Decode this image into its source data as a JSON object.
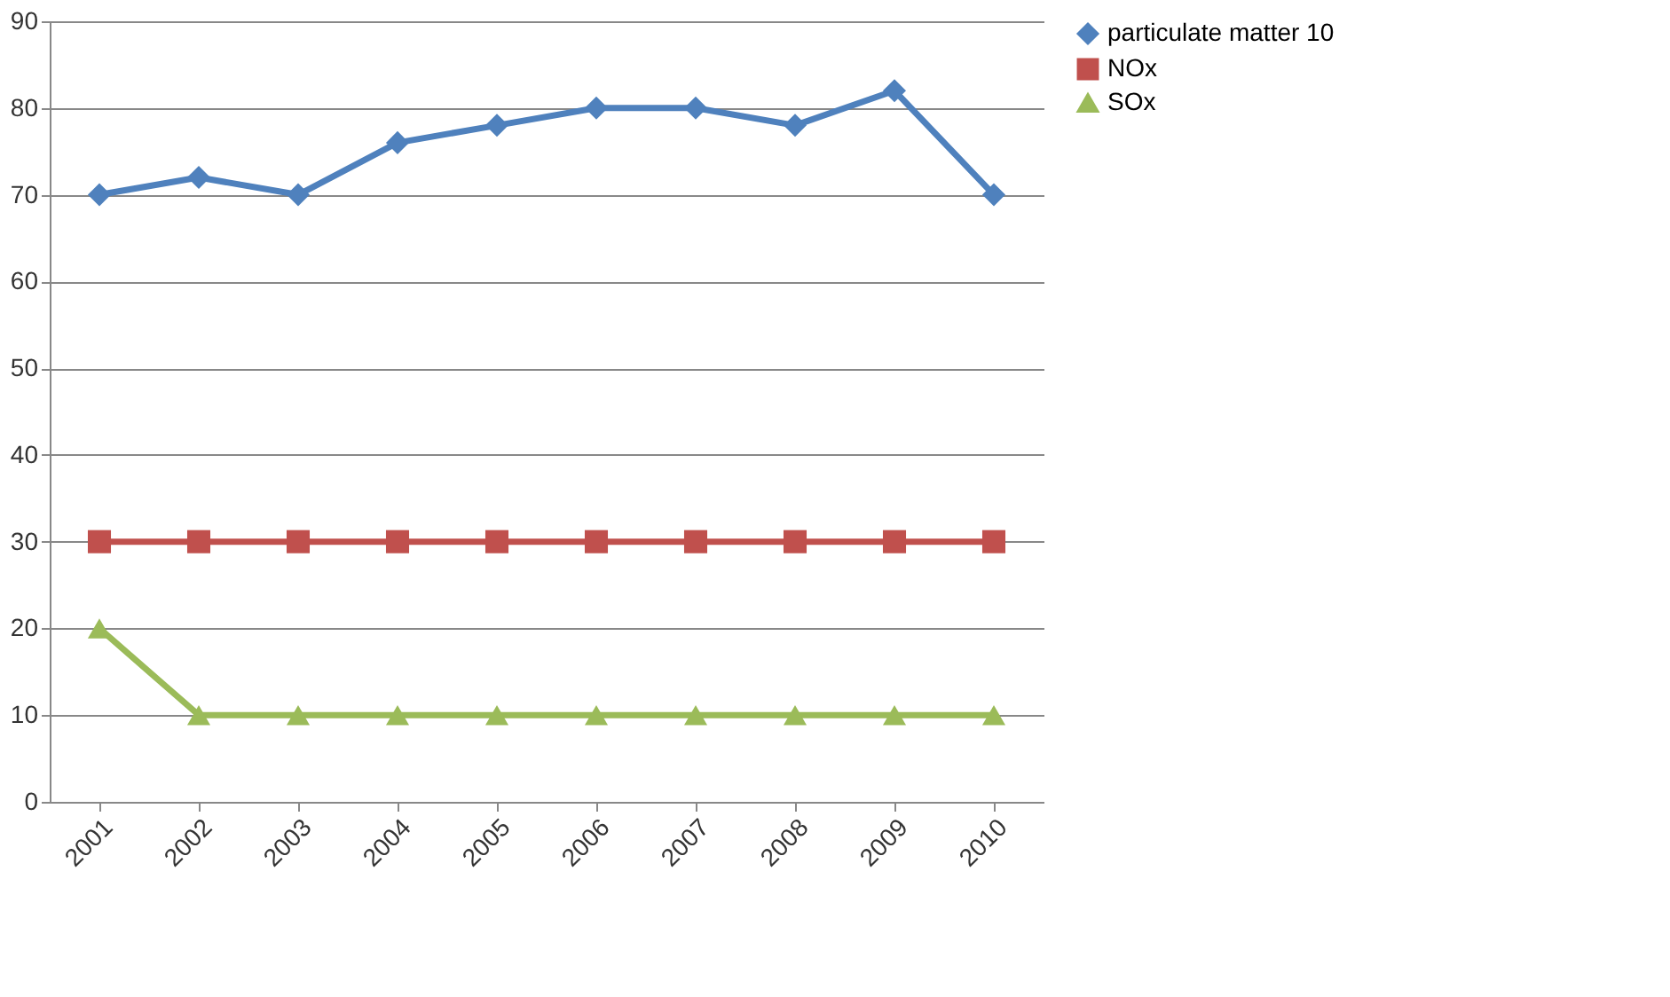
{
  "chart_data": {
    "type": "line",
    "categories": [
      "2001",
      "2002",
      "2003",
      "2004",
      "2005",
      "2006",
      "2007",
      "2008",
      "2009",
      "2010"
    ],
    "series": [
      {
        "name": "particulate matter 10",
        "color": "#4f81bd",
        "marker": "diamond",
        "values": [
          70,
          72,
          70,
          76,
          78,
          80,
          80,
          78,
          82,
          70
        ]
      },
      {
        "name": "NOx",
        "color": "#c0504d",
        "marker": "square",
        "values": [
          30,
          30,
          30,
          30,
          30,
          30,
          30,
          30,
          30,
          30
        ]
      },
      {
        "name": "SOx",
        "color": "#9bbb59",
        "marker": "triangle",
        "values": [
          20,
          10,
          10,
          10,
          10,
          10,
          10,
          10,
          10,
          10
        ]
      }
    ],
    "ylim": [
      0,
      90
    ],
    "yticks": [
      0,
      10,
      20,
      30,
      40,
      50,
      60,
      70,
      80,
      90
    ],
    "grid": "y",
    "legend": "right",
    "line_style": "solid"
  }
}
